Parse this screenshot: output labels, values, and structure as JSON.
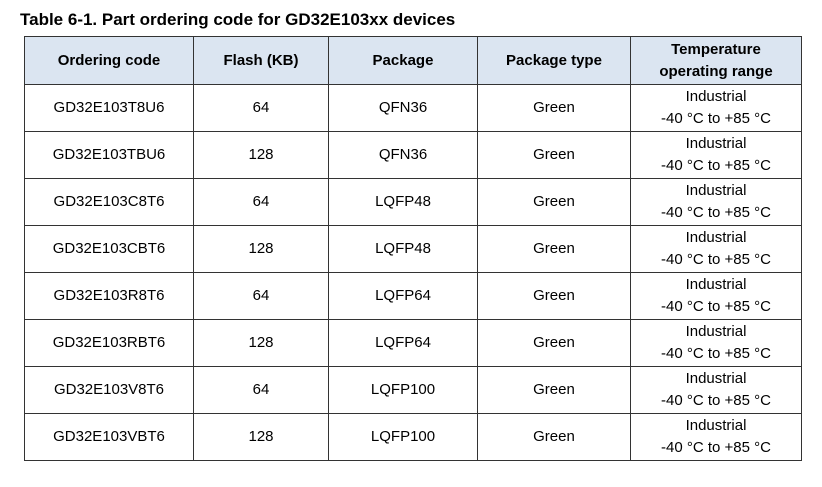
{
  "title": "Table 6-1. Part ordering code for GD32E103xx devices",
  "table": {
    "headers": [
      "Ordering code",
      "Flash (KB)",
      "Package",
      "Package type",
      "Temperature operating range"
    ],
    "rows": [
      [
        "GD32E103T8U6",
        64,
        "QFN36",
        "Green",
        [
          "Industrial",
          "-40 °C to +85 °C"
        ]
      ],
      [
        "GD32E103TBU6",
        128,
        "QFN36",
        "Green",
        [
          "Industrial",
          "-40 °C to +85 °C"
        ]
      ],
      [
        "GD32E103C8T6",
        64,
        "LQFP48",
        "Green",
        [
          "Industrial",
          "-40 °C to +85 °C"
        ]
      ],
      [
        "GD32E103CBT6",
        128,
        "LQFP48",
        "Green",
        [
          "Industrial",
          "-40 °C to +85 °C"
        ]
      ],
      [
        "GD32E103R8T6",
        64,
        "LQFP64",
        "Green",
        [
          "Industrial",
          "-40 °C to +85 °C"
        ]
      ],
      [
        "GD32E103RBT6",
        128,
        "LQFP64",
        "Green",
        [
          "Industrial",
          "-40 °C to +85 °C"
        ]
      ],
      [
        "GD32E103V8T6",
        64,
        "LQFP100",
        "Green",
        [
          "Industrial",
          "-40 °C to +85 °C"
        ]
      ],
      [
        "GD32E103VBT6",
        128,
        "LQFP100",
        "Green",
        [
          "Industrial",
          "-40 °C to +85 °C"
        ]
      ]
    ]
  }
}
